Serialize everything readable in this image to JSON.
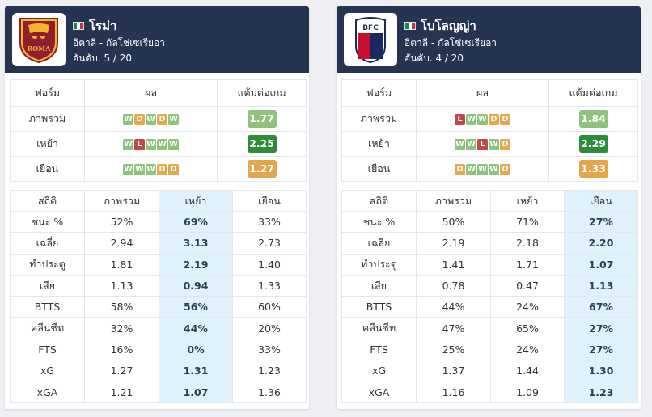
{
  "teams": [
    {
      "name": "โรม่า",
      "league": "อิตาลี - กัลโช่เซเรียอา",
      "rank": "อันดับ. 5 / 20",
      "form_headers": [
        "ฟอร์ม",
        "ผล",
        "แต้มต่อเกม"
      ],
      "form_rows": [
        {
          "label": "ภาพรวม",
          "results": [
            "W",
            "D",
            "W",
            "D",
            "W"
          ],
          "ppg": "1.77",
          "ppg_color": "light"
        },
        {
          "label": "เหย้า",
          "results": [
            "W",
            "L",
            "W",
            "W",
            "W"
          ],
          "ppg": "2.25",
          "ppg_color": "dark"
        },
        {
          "label": "เยือน",
          "results": [
            "W",
            "W",
            "W",
            "D",
            "D"
          ],
          "ppg": "1.27",
          "ppg_color": "orange"
        }
      ],
      "stats_headers": [
        "สถิติ",
        "ภาพรวม",
        "เหย้า",
        "เยือน"
      ],
      "highlight_col": 2,
      "stats_rows": [
        {
          "label": "ชนะ %",
          "values": [
            "52%",
            "69%",
            "33%"
          ]
        },
        {
          "label": "เฉลี่ย",
          "values": [
            "2.94",
            "3.13",
            "2.73"
          ]
        },
        {
          "label": "ทำประตู",
          "values": [
            "1.81",
            "2.19",
            "1.40"
          ]
        },
        {
          "label": "เสีย",
          "values": [
            "1.13",
            "0.94",
            "1.33"
          ]
        },
        {
          "label": "BTTS",
          "values": [
            "58%",
            "56%",
            "60%"
          ]
        },
        {
          "label": "คลีนชีท",
          "values": [
            "32%",
            "44%",
            "20%"
          ]
        },
        {
          "label": "FTS",
          "values": [
            "16%",
            "0%",
            "33%"
          ]
        },
        {
          "label": "xG",
          "values": [
            "1.27",
            "1.31",
            "1.23"
          ]
        },
        {
          "label": "xGA",
          "values": [
            "1.21",
            "1.07",
            "1.36"
          ]
        }
      ]
    },
    {
      "name": "โบโลญญ่า",
      "league": "อิตาลี - กัลโช่เซเรียอา",
      "rank": "อันดับ. 4 / 20",
      "form_headers": [
        "ฟอร์ม",
        "ผล",
        "แต้มต่อเกม"
      ],
      "form_rows": [
        {
          "label": "ภาพรวม",
          "results": [
            "L",
            "W",
            "W",
            "D",
            "D"
          ],
          "ppg": "1.84",
          "ppg_color": "light"
        },
        {
          "label": "เหย้า",
          "results": [
            "W",
            "W",
            "L",
            "W",
            "D"
          ],
          "ppg": "2.29",
          "ppg_color": "dark"
        },
        {
          "label": "เยือน",
          "results": [
            "D",
            "W",
            "W",
            "W",
            "D"
          ],
          "ppg": "1.33",
          "ppg_color": "orange"
        }
      ],
      "stats_headers": [
        "สถิติ",
        "ภาพรวม",
        "เหย้า",
        "เยือน"
      ],
      "highlight_col": 3,
      "stats_rows": [
        {
          "label": "ชนะ %",
          "values": [
            "50%",
            "71%",
            "27%"
          ]
        },
        {
          "label": "เฉลี่ย",
          "values": [
            "2.19",
            "2.18",
            "2.20"
          ]
        },
        {
          "label": "ทำประตู",
          "values": [
            "1.41",
            "1.71",
            "1.07"
          ]
        },
        {
          "label": "เสีย",
          "values": [
            "0.78",
            "0.47",
            "1.13"
          ]
        },
        {
          "label": "BTTS",
          "values": [
            "44%",
            "24%",
            "67%"
          ]
        },
        {
          "label": "คลีนชีท",
          "values": [
            "47%",
            "65%",
            "27%"
          ]
        },
        {
          "label": "FTS",
          "values": [
            "25%",
            "24%",
            "27%"
          ]
        },
        {
          "label": "xG",
          "values": [
            "1.37",
            "1.44",
            "1.30"
          ]
        },
        {
          "label": "xGA",
          "values": [
            "1.16",
            "1.09",
            "1.23"
          ]
        }
      ]
    }
  ],
  "logos": [
    {
      "icon": "roma-crest-icon",
      "text": "ROMA"
    },
    {
      "icon": "bologna-crest-icon",
      "text": "BFC"
    }
  ],
  "colors": {
    "header_bg": "#253451",
    "win": "#8cc47a",
    "draw": "#e5a84a",
    "loss": "#c0474a",
    "highlight": "#dff1fb"
  }
}
